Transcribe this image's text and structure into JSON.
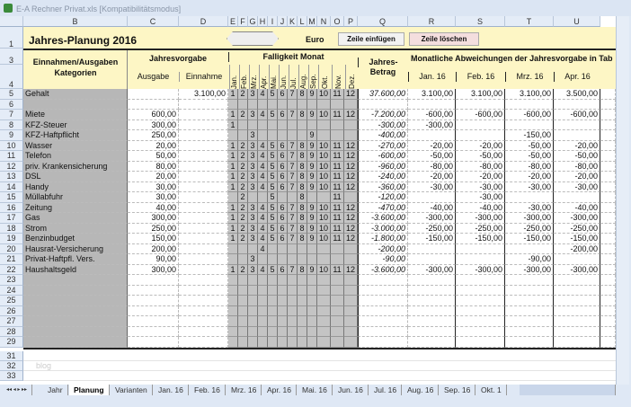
{
  "window": {
    "title": "E-A Rechner Privat.xls [Kompatibilitätsmodus]"
  },
  "columns": [
    "B",
    "C",
    "D",
    "E",
    "F",
    "G",
    "H",
    "I",
    "J",
    "K",
    "L",
    "M",
    "N",
    "O",
    "P",
    "Q",
    "R",
    "S",
    "T",
    "U"
  ],
  "header": {
    "title": "Jahres-Planung  2016",
    "currency": "Euro",
    "insert_row": "Zeile einfügen",
    "delete_row": "Zeile löschen",
    "categories_l1": "Einnahmen/Ausgaben",
    "categories_l2": "Kategorien",
    "jahresvorgabe": "Jahresvorgabe",
    "ausgabe": "Ausgabe",
    "einnahme": "Einnahme",
    "faelligkeit": "Falligkeit Monat",
    "months": [
      "Jan.",
      "Feb.",
      "Mrz.",
      "Apr.",
      "Mai.",
      "Jun.",
      "Jul.",
      "Aug.",
      "Sep.",
      "Okt.",
      "Nov.",
      "Dez."
    ],
    "jahres_l1": "Jahres-",
    "jahres_l2": "Betrag",
    "abweichungen": "Monatliche Abweichungen der Jahresvorgabe in Tab",
    "month_cols": [
      "Jan. 16",
      "Feb. 16",
      "Mrz. 16",
      "Apr. 16"
    ]
  },
  "rows": [
    {
      "n": "5",
      "name": "Gehalt",
      "aus": "",
      "ein": "3.100,00",
      "m": [
        1,
        2,
        3,
        4,
        5,
        6,
        7,
        8,
        9,
        10,
        11,
        12
      ],
      "betrag": "37.600,00",
      "v": [
        "3.100,00",
        "3.100,00",
        "3.100,00",
        "3.500,00"
      ]
    },
    {
      "n": "6",
      "name": "",
      "aus": "",
      "ein": "",
      "m": [],
      "betrag": "",
      "v": [
        "",
        "",
        "",
        ""
      ]
    },
    {
      "n": "7",
      "name": "Miete",
      "aus": "600,00",
      "ein": "",
      "m": [
        1,
        2,
        3,
        4,
        5,
        6,
        7,
        8,
        9,
        10,
        11,
        12
      ],
      "betrag": "-7.200,00",
      "v": [
        "-600,00",
        "-600,00",
        "-600,00",
        "-600,00"
      ]
    },
    {
      "n": "8",
      "name": "KFZ-Steuer",
      "aus": "300,00",
      "ein": "",
      "m": [
        1
      ],
      "betrag": "-300,00",
      "v": [
        "-300,00",
        "",
        "",
        ""
      ]
    },
    {
      "n": "9",
      "name": "KFZ-Haftpflicht",
      "aus": "250,00",
      "ein": "",
      "m": [
        3,
        9
      ],
      "betrag": "-400,00",
      "v": [
        "",
        "",
        "-150,00",
        ""
      ]
    },
    {
      "n": "10",
      "name": "Wasser",
      "aus": "20,00",
      "ein": "",
      "m": [
        1,
        2,
        3,
        4,
        5,
        6,
        7,
        8,
        9,
        10,
        11,
        12
      ],
      "betrag": "-270,00",
      "v": [
        "-20,00",
        "-20,00",
        "-50,00",
        "-20,00"
      ]
    },
    {
      "n": "11",
      "name": "Telefon",
      "aus": "50,00",
      "ein": "",
      "m": [
        1,
        2,
        3,
        4,
        5,
        6,
        7,
        8,
        9,
        10,
        11,
        12
      ],
      "betrag": "-600,00",
      "v": [
        "-50,00",
        "-50,00",
        "-50,00",
        "-50,00"
      ]
    },
    {
      "n": "12",
      "name": "priv. Krankensicherung",
      "aus": "80,00",
      "ein": "",
      "m": [
        1,
        2,
        3,
        4,
        5,
        6,
        7,
        8,
        9,
        10,
        11,
        12
      ],
      "betrag": "-960,00",
      "v": [
        "-80,00",
        "-80,00",
        "-80,00",
        "-80,00"
      ]
    },
    {
      "n": "13",
      "name": "DSL",
      "aus": "20,00",
      "ein": "",
      "m": [
        1,
        2,
        3,
        4,
        5,
        6,
        7,
        8,
        9,
        10,
        11,
        12
      ],
      "betrag": "-240,00",
      "v": [
        "-20,00",
        "-20,00",
        "-20,00",
        "-20,00"
      ]
    },
    {
      "n": "14",
      "name": "Handy",
      "aus": "30,00",
      "ein": "",
      "m": [
        1,
        2,
        3,
        4,
        5,
        6,
        7,
        8,
        9,
        10,
        11,
        12
      ],
      "betrag": "-360,00",
      "v": [
        "-30,00",
        "-30,00",
        "-30,00",
        "-30,00"
      ]
    },
    {
      "n": "15",
      "name": "Müllabfuhr",
      "aus": "30,00",
      "ein": "",
      "m": [
        2,
        5,
        8,
        11
      ],
      "betrag": "-120,00",
      "v": [
        "",
        "-30,00",
        "",
        ""
      ]
    },
    {
      "n": "16",
      "name": "Zeitung",
      "aus": "40,00",
      "ein": "",
      "m": [
        1,
        2,
        3,
        4,
        5,
        6,
        7,
        8,
        9,
        10,
        11,
        12
      ],
      "betrag": "-470,00",
      "v": [
        "-40,00",
        "-40,00",
        "-30,00",
        "-40,00"
      ]
    },
    {
      "n": "17",
      "name": "Gas",
      "aus": "300,00",
      "ein": "",
      "m": [
        1,
        2,
        3,
        4,
        5,
        6,
        7,
        8,
        9,
        10,
        11,
        12
      ],
      "betrag": "-3.600,00",
      "v": [
        "-300,00",
        "-300,00",
        "-300,00",
        "-300,00"
      ]
    },
    {
      "n": "18",
      "name": "Strom",
      "aus": "250,00",
      "ein": "",
      "m": [
        1,
        2,
        3,
        4,
        5,
        6,
        7,
        8,
        9,
        10,
        11,
        12
      ],
      "betrag": "-3.000,00",
      "v": [
        "-250,00",
        "-250,00",
        "-250,00",
        "-250,00"
      ]
    },
    {
      "n": "19",
      "name": "Benzinbudget",
      "aus": "150,00",
      "ein": "",
      "m": [
        1,
        2,
        3,
        4,
        5,
        6,
        7,
        8,
        9,
        10,
        11,
        12
      ],
      "betrag": "-1.800,00",
      "v": [
        "-150,00",
        "-150,00",
        "-150,00",
        "-150,00"
      ]
    },
    {
      "n": "20",
      "name": "Hausrat-Versicherung",
      "aus": "200,00",
      "ein": "",
      "m": [
        4
      ],
      "betrag": "-200,00",
      "v": [
        "",
        "",
        "",
        "-200,00"
      ]
    },
    {
      "n": "21",
      "name": "Privat-Haftpfl. Vers.",
      "aus": "90,00",
      "ein": "",
      "m": [
        3
      ],
      "betrag": "-90,00",
      "v": [
        "",
        "",
        "-90,00",
        ""
      ]
    },
    {
      "n": "22",
      "name": "Haushaltsgeld",
      "aus": "300,00",
      "ein": "",
      "m": [
        1,
        2,
        3,
        4,
        5,
        6,
        7,
        8,
        9,
        10,
        11,
        12
      ],
      "betrag": "-3.600,00",
      "v": [
        "-300,00",
        "-300,00",
        "-300,00",
        "-300,00"
      ]
    },
    {
      "n": "23",
      "name": "",
      "aus": "",
      "ein": "",
      "m": [],
      "betrag": "",
      "v": [
        "",
        "",
        "",
        ""
      ]
    },
    {
      "n": "24",
      "name": "",
      "aus": "",
      "ein": "",
      "m": [],
      "betrag": "",
      "v": [
        "",
        "",
        "",
        ""
      ]
    },
    {
      "n": "25",
      "name": "",
      "aus": "",
      "ein": "",
      "m": [],
      "betrag": "",
      "v": [
        "",
        "",
        "",
        ""
      ]
    },
    {
      "n": "26",
      "name": "",
      "aus": "",
      "ein": "",
      "m": [],
      "betrag": "",
      "v": [
        "",
        "",
        "",
        ""
      ]
    },
    {
      "n": "27",
      "name": "",
      "aus": "",
      "ein": "",
      "m": [],
      "betrag": "",
      "v": [
        "",
        "",
        "",
        ""
      ]
    },
    {
      "n": "28",
      "name": "",
      "aus": "",
      "ein": "",
      "m": [],
      "betrag": "",
      "v": [
        "",
        "",
        "",
        ""
      ]
    },
    {
      "n": "29",
      "name": "",
      "aus": "",
      "ein": "",
      "m": [],
      "betrag": "",
      "v": [
        "",
        "",
        "",
        ""
      ]
    }
  ],
  "header_rows": [
    "1",
    "3",
    "4"
  ],
  "footer_rows": [
    "31",
    "32",
    "33"
  ],
  "watermark": "blog",
  "tabs": [
    "Jahr",
    "Planung",
    "Varianten",
    "Jan. 16",
    "Feb. 16",
    "Mrz. 16",
    "Apr. 16",
    "Mai. 16",
    "Jun. 16",
    "Jul. 16",
    "Aug. 16",
    "Sep. 16",
    "Okt. 1"
  ],
  "active_tab": "Planung"
}
